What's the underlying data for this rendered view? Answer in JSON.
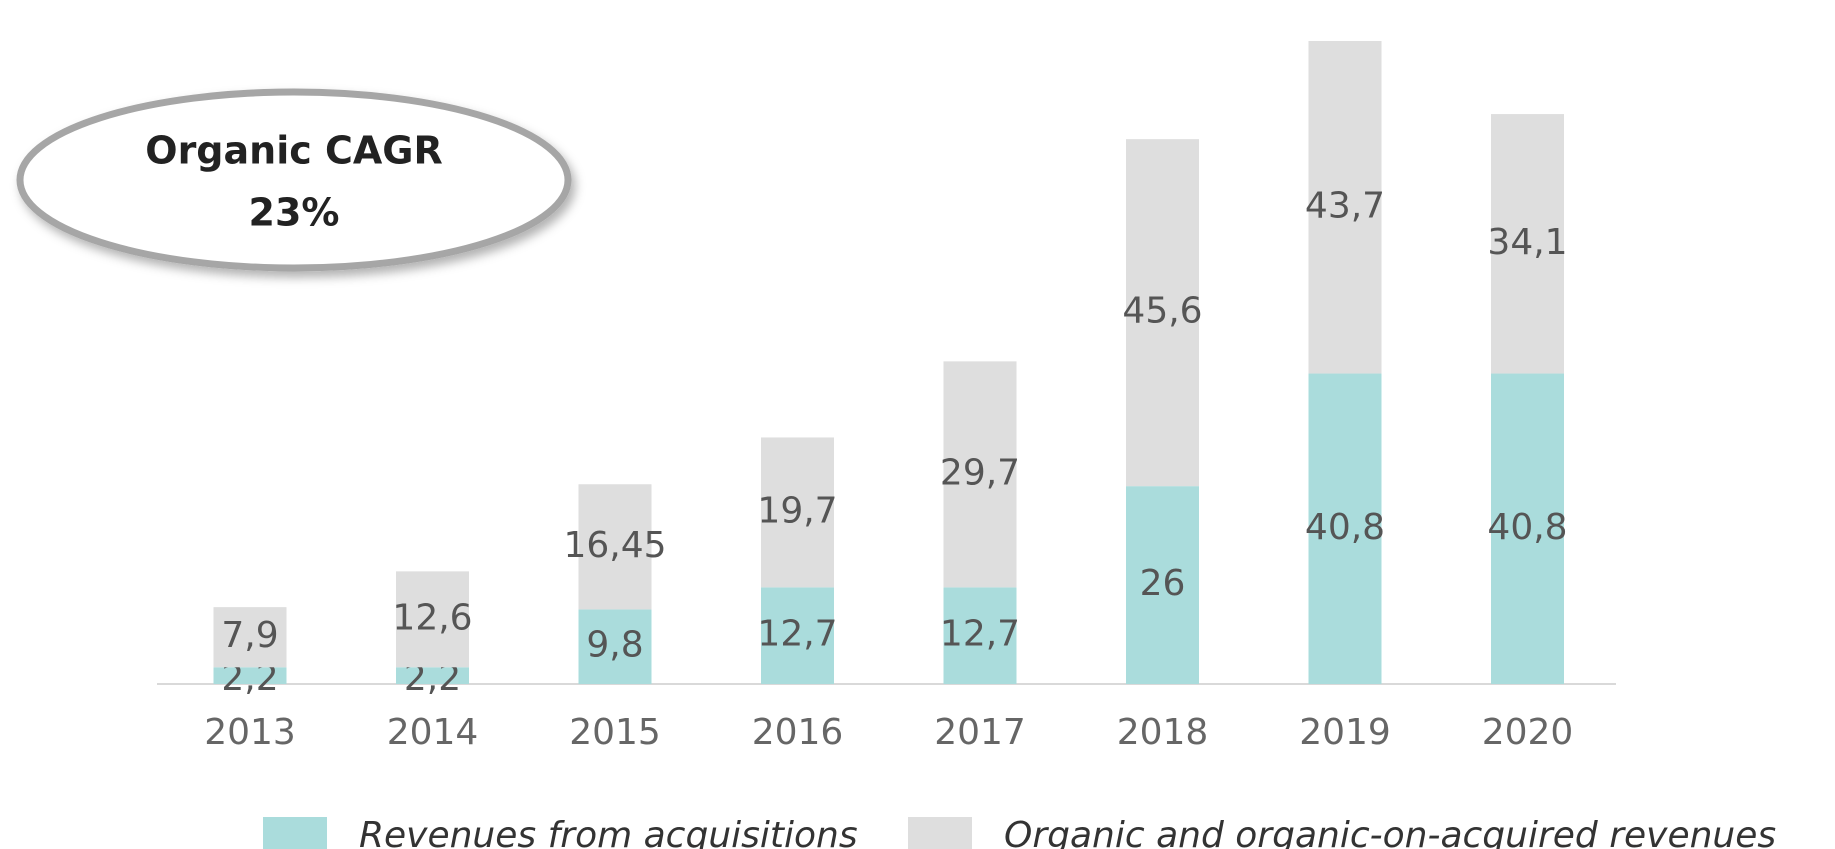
{
  "chart_data": {
    "type": "stacked_bar",
    "categories": [
      "2013",
      "2014",
      "2015",
      "2016",
      "2017",
      "2018",
      "2019",
      "2020"
    ],
    "series": [
      {
        "name": "Revenues from acquisitions",
        "color": "#aadcdc",
        "values": [
          2.2,
          2.2,
          9.8,
          12.7,
          12.7,
          26,
          40.8,
          40.8
        ],
        "value_labels": [
          "2,2",
          "2,2",
          "9,8",
          "12,7",
          "12,7",
          "26",
          "40,8",
          "40,8"
        ]
      },
      {
        "name": "Organic and organic-on-acquired revenues",
        "color": "#dedede",
        "values": [
          7.9,
          12.6,
          16.45,
          19.7,
          29.7,
          45.6,
          43.7,
          34.1
        ],
        "value_labels": [
          "7,9",
          "12,6",
          "16,45",
          "19,7",
          "29,7",
          "45,6",
          "43,7",
          "34,1"
        ]
      }
    ],
    "annotation": [
      "Organic CAGR",
      "23%"
    ]
  }
}
